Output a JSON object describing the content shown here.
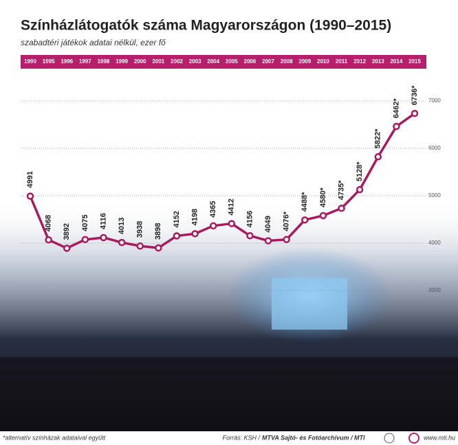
{
  "chart_data": {
    "type": "line",
    "title": "Színházlátogatók száma Magyarországon (1990–2015)",
    "subtitle": "szabadtéri játékok adatai nélkül, ezer fő",
    "categories": [
      "1990",
      "1995",
      "1996",
      "1997",
      "1998",
      "1999",
      "2000",
      "2001",
      "2002",
      "2003",
      "2004",
      "2005",
      "2006",
      "2007",
      "2008",
      "2009",
      "2010",
      "2011",
      "2012",
      "2013",
      "2014",
      "2015"
    ],
    "values": [
      4991,
      4068,
      3892,
      4075,
      4116,
      4013,
      3938,
      3898,
      4152,
      4198,
      4365,
      4412,
      4156,
      4049,
      4076,
      4488,
      4580,
      4735,
      5128,
      5822,
      6462,
      6736
    ],
    "value_labels": [
      "4991",
      "4068",
      "3892",
      "4075",
      "4116",
      "4013",
      "3938",
      "3898",
      "4152",
      "4198",
      "4365",
      "4412",
      "4156",
      "4049",
      "4076*",
      "4488*",
      "4580*",
      "4735*",
      "5128*",
      "5822*",
      "6462*",
      "6736*"
    ],
    "color": "#a8195f",
    "ylim": [
      2000,
      7500
    ],
    "yticks": [
      3000,
      4000,
      5000,
      6000,
      7000
    ],
    "grid": true,
    "footnote": "*alternatív színházak adataival együtt",
    "source": [
      "Forrás: KSH /",
      "MTVA Sajtó- és Fotóarchívum / MTI"
    ],
    "website": "www.mti.hu"
  }
}
